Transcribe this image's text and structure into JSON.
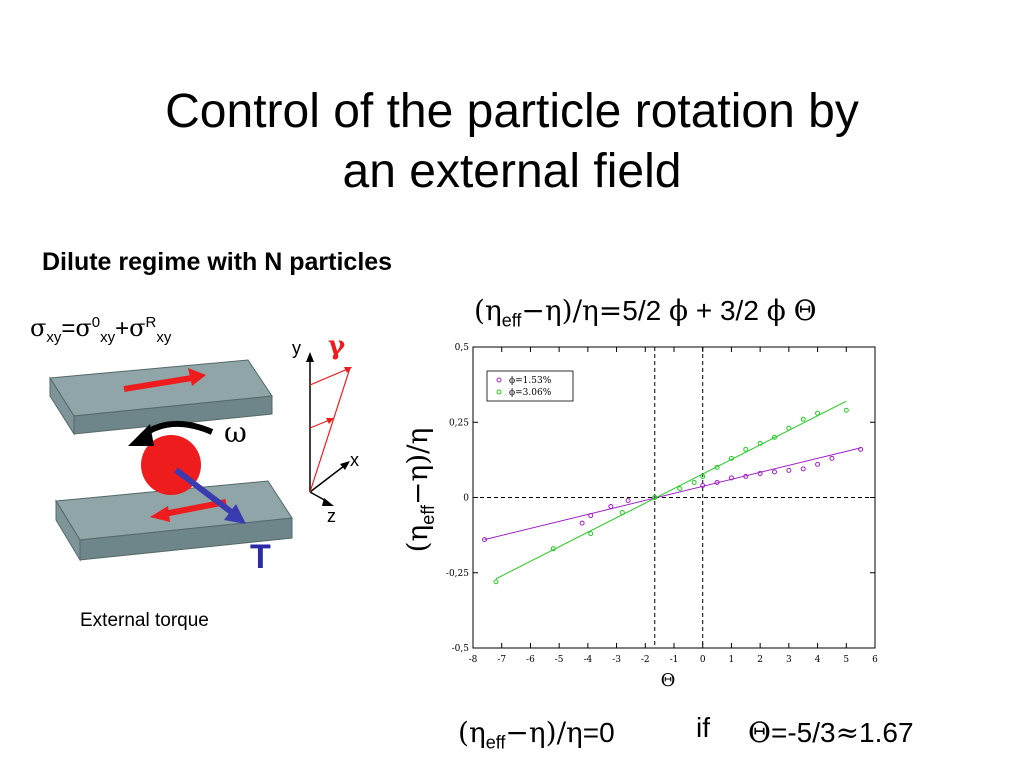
{
  "title_line1": "Control of the particle rotation by",
  "title_line2": "an external field",
  "subtitle": "Dilute regime with N particles",
  "stress": {
    "sigma": "σ",
    "sub_xy": "xy",
    "eq": "=",
    "sup0": "0",
    "plus": "+",
    "supR": "R"
  },
  "diagram": {
    "axis_y": "y",
    "axis_x": "x",
    "axis_z": "z",
    "gamma": "γ",
    "omega": "ω",
    "torque": "T",
    "caption": "External torque",
    "colors": {
      "plate": "#8fa5a8",
      "plate_side": "#6e8689",
      "particle": "#ee1c1c",
      "arrow_red": "#ee1c1c",
      "arrow_blue": "#3b3bb0",
      "gamma": "#ee1c1c",
      "torque": "#2b2ba8"
    }
  },
  "formula_top": {
    "lp": "(",
    "eta": "η",
    "eff": "eff",
    "minus": "−",
    "rp": ")/",
    "eqsym": "=",
    "rest": "5/2 ",
    "phi": "ϕ",
    "mid": " + 3/2 ",
    "theta": "Θ"
  },
  "formula_bottom": {
    "lp": "(",
    "eta": "η",
    "eff": "eff",
    "minus": "−",
    "rp": ")/",
    "tail": "=0"
  },
  "formula_if": "if",
  "formula_theta": {
    "theta": "Θ",
    "rest": "=-5/3",
    "approx": "≈",
    "val": "1.67"
  },
  "chart_data": {
    "type": "scatter",
    "title": "",
    "xlabel": "Θ",
    "ylabel": "(ηeff−η)/η",
    "xlim": [
      -8,
      6
    ],
    "ylim": [
      -0.5,
      0.5
    ],
    "xticks": [
      "-8",
      "-7",
      "-6",
      "-5",
      "-4",
      "-3",
      "-2",
      "-1",
      "0",
      "1",
      "2",
      "3",
      "4",
      "5",
      "6"
    ],
    "yticks": [
      "0,5",
      "0,25",
      "0",
      "-0,25",
      "-0,5"
    ],
    "yticks_values": [
      0.5,
      0.25,
      0,
      -0.25,
      -0.5
    ],
    "legend_position": "top-left",
    "vertical_dashed": [
      -1.67,
      0
    ],
    "horizontal_dashed": [
      0
    ],
    "series": [
      {
        "name": "ϕ=1.53%",
        "color": "#a020c8",
        "x": [
          -7.6,
          -4.2,
          -3.9,
          -3.2,
          -2.6,
          -1.67,
          0,
          0.5,
          1,
          1.5,
          2,
          2.5,
          3,
          3.5,
          4,
          4.5,
          5.5
        ],
        "y": [
          -0.14,
          -0.085,
          -0.06,
          -0.03,
          -0.01,
          0,
          0.04,
          0.05,
          0.065,
          0.07,
          0.08,
          0.085,
          0.09,
          0.095,
          0.11,
          0.13,
          0.16
        ],
        "fit": [
          [
            -7.6,
            -0.14
          ],
          [
            5.5,
            0.165
          ]
        ]
      },
      {
        "name": "ϕ=3.06%",
        "color": "#22cc22",
        "x": [
          -7.2,
          -5.2,
          -3.9,
          -2.8,
          -1.67,
          -0.8,
          -0.3,
          0,
          0.5,
          1,
          1.5,
          2,
          2.5,
          3,
          3.5,
          4,
          5
        ],
        "y": [
          -0.28,
          -0.17,
          -0.12,
          -0.05,
          0,
          0.03,
          0.05,
          0.07,
          0.1,
          0.13,
          0.16,
          0.18,
          0.2,
          0.23,
          0.26,
          0.28,
          0.29
        ],
        "fit": [
          [
            -7.2,
            -0.27
          ],
          [
            5,
            0.32
          ]
        ]
      }
    ]
  }
}
